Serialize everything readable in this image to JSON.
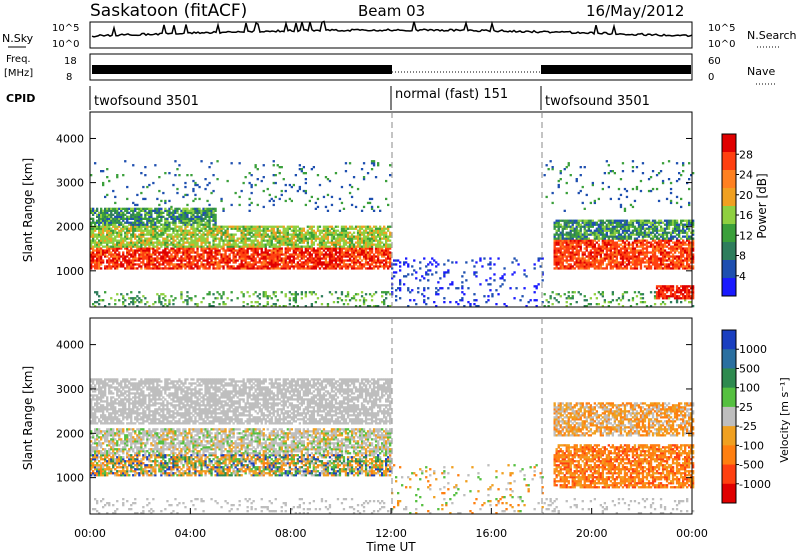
{
  "header": {
    "station": "Saskatoon (fitACF)",
    "beam": "Beam 03",
    "date": "16/May/2012"
  },
  "strip_labels": {
    "nsky": "N.Sky",
    "nsky_hi": "10^5",
    "nsky_lo": "10^0",
    "nsearch": "N.Search",
    "nsearch_hi": "10^5",
    "nsearch_lo": "10^0",
    "freq_line1": "Freq.",
    "freq_line2": "[MHz]",
    "freq_hi": "18",
    "freq_lo": "8",
    "nave": "Nave",
    "nave_hi": "60",
    "nave_lo": "0",
    "cpid": "CPID"
  },
  "cpid_segments": [
    {
      "label": "twofsound 3501",
      "start_h": 0
    },
    {
      "label": "normal (fast) 151",
      "start_h": 12
    },
    {
      "label": "twofsound 3501",
      "start_h": 18
    }
  ],
  "colors": {
    "power_scale": [
      "#1a1aff",
      "#1e4fb0",
      "#2e7d5c",
      "#3a9f3a",
      "#8fd040",
      "#f0a020",
      "#ff8020",
      "#ff4010",
      "#e00000"
    ],
    "velocity_scale": [
      "#1a3fc0",
      "#2a6fa0",
      "#2e8a4f",
      "#55c040",
      "#bebebe",
      "#f0a020",
      "#ff7f10",
      "#ff4010",
      "#e00000"
    ]
  },
  "chart_data": [
    {
      "type": "heatmap",
      "name": "power",
      "xlabel": "",
      "ylabel": "Slant Range [km]",
      "x_range_hours": [
        0,
        24
      ],
      "ylim": [
        180,
        4600
      ],
      "yticks": [
        1000,
        2000,
        3000,
        4000
      ],
      "colorbar": {
        "label": "Power [dB]",
        "ticks": [
          4,
          8,
          12,
          16,
          20,
          24,
          28
        ],
        "range": [
          0,
          32
        ]
      }
    },
    {
      "type": "heatmap",
      "name": "velocity",
      "xlabel": "Time UT",
      "ylabel": "Slant Range [km]",
      "x_range_hours": [
        0,
        24
      ],
      "ylim": [
        180,
        4600
      ],
      "yticks": [
        1000,
        2000,
        3000,
        4000
      ],
      "xticks": [
        "00:00",
        "04:00",
        "08:00",
        "12:00",
        "16:00",
        "20:00",
        "00:00"
      ],
      "colorbar": {
        "label": "Velocity [m s⁻¹]",
        "ticks": [
          "1000",
          "500",
          "100",
          "25",
          "-25",
          "-100",
          "-500",
          "-1000"
        ]
      }
    }
  ]
}
